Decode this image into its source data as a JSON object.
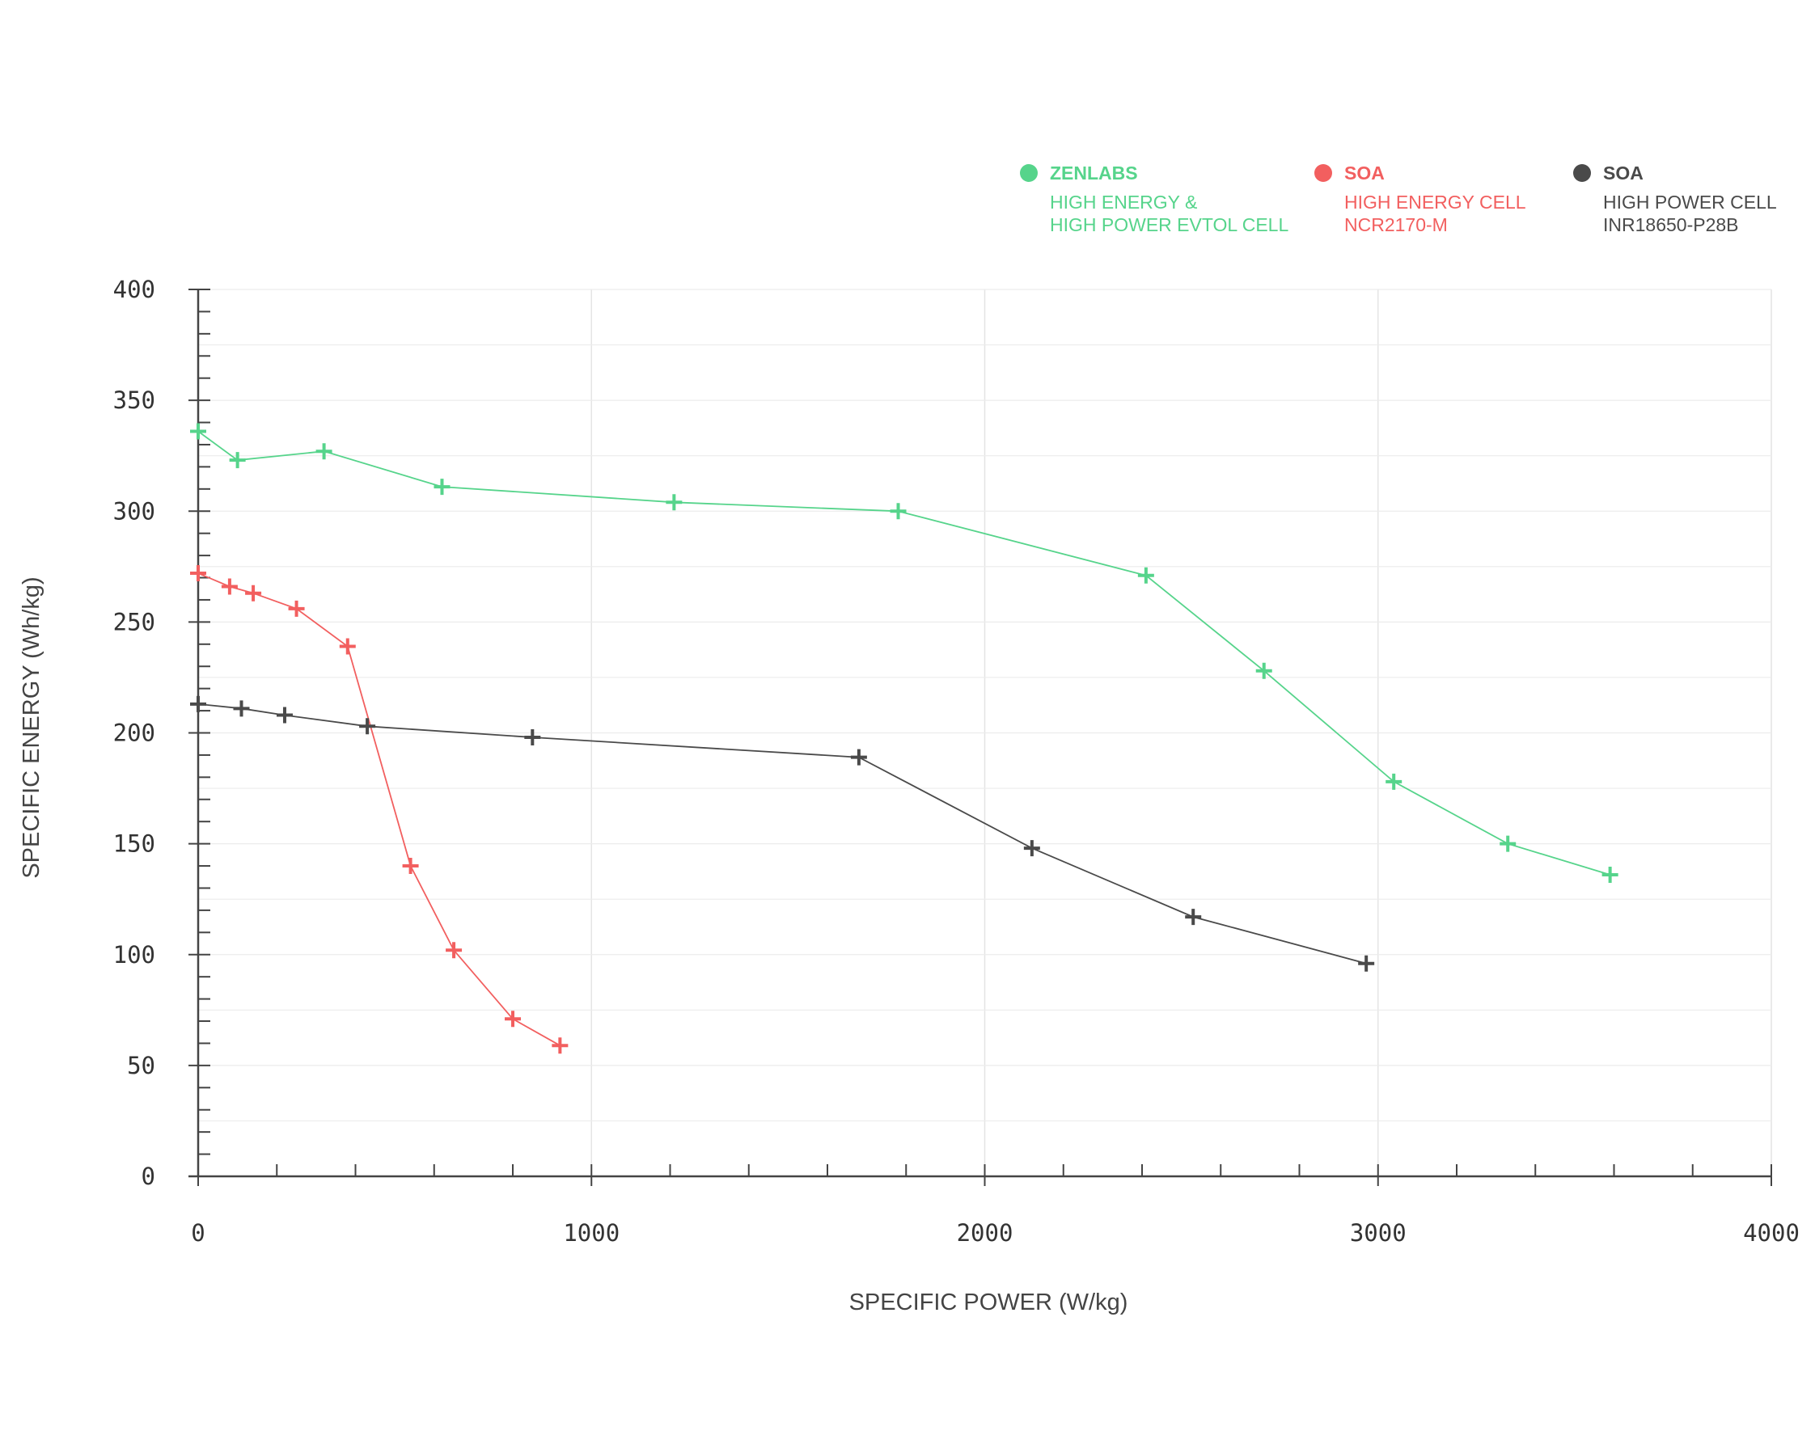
{
  "chart_data": {
    "type": "line",
    "xlabel": "SPECIFIC POWER (W/kg)",
    "ylabel": "SPECIFIC ENERGY (Wh/kg)",
    "xlim": [
      0,
      4000
    ],
    "ylim": [
      0,
      400
    ],
    "x_ticks": [
      "0",
      "1000",
      "2000",
      "3000",
      "4000"
    ],
    "y_ticks": [
      "0",
      "50",
      "100",
      "150",
      "200",
      "250",
      "300",
      "350",
      "400"
    ],
    "grid": true,
    "legend_position": "top-right",
    "marker": "plus",
    "series": [
      {
        "name": "ZENLABS",
        "description_lines": [
          "HIGH ENERGY &",
          "HIGH POWER EVTOL CELL"
        ],
        "color": "#56d48b",
        "points": [
          [
            0,
            336
          ],
          [
            100,
            323
          ],
          [
            320,
            327
          ],
          [
            620,
            311
          ],
          [
            1210,
            304
          ],
          [
            1780,
            300
          ],
          [
            2410,
            271
          ],
          [
            2710,
            228
          ],
          [
            3040,
            178
          ],
          [
            3330,
            150
          ],
          [
            3590,
            136
          ]
        ]
      },
      {
        "name": "SOA",
        "description_lines": [
          "HIGH ENERGY CELL",
          "NCR2170-M"
        ],
        "color": "#f25f5f",
        "points": [
          [
            0,
            272
          ],
          [
            80,
            266
          ],
          [
            140,
            263
          ],
          [
            250,
            256
          ],
          [
            380,
            239
          ],
          [
            540,
            140
          ],
          [
            650,
            102
          ],
          [
            800,
            71
          ],
          [
            920,
            59
          ]
        ]
      },
      {
        "name": "SOA",
        "description_lines": [
          "HIGH POWER CELL",
          "INR18650-P28B"
        ],
        "color": "#4a4a4a",
        "points": [
          [
            0,
            213
          ],
          [
            110,
            211
          ],
          [
            220,
            208
          ],
          [
            430,
            203
          ],
          [
            850,
            198
          ],
          [
            1680,
            189
          ],
          [
            2120,
            148
          ],
          [
            2530,
            117
          ],
          [
            2970,
            96
          ]
        ]
      }
    ]
  }
}
